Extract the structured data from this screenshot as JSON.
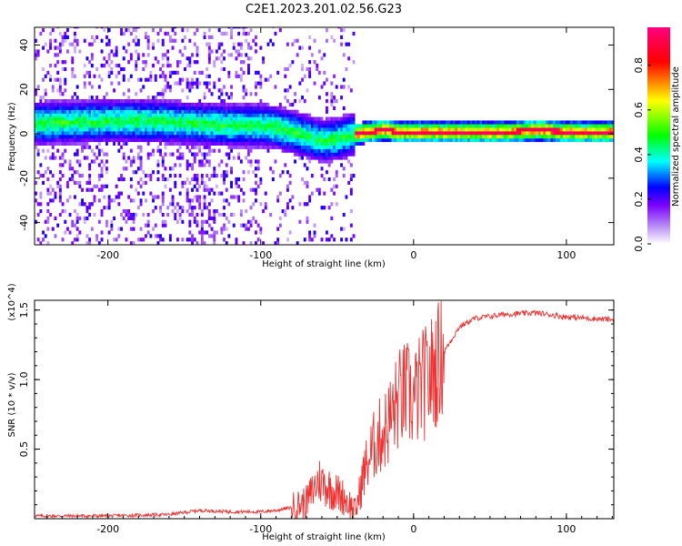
{
  "title": "C2E1.2023.201.02.56.G23",
  "chart_data": [
    {
      "type": "heatmap",
      "xlabel": "Height of straight line (km)",
      "ylabel": "Frequency (Hz)",
      "xlim": [
        -248,
        131
      ],
      "ylim": [
        -50,
        48
      ],
      "xticks": [
        -200,
        -100,
        0,
        100
      ],
      "xtick_labels": [
        "-200",
        "-100",
        "0",
        "100"
      ],
      "yticks": [
        -40,
        -20,
        0,
        20,
        40
      ],
      "ytick_labels": [
        "-40",
        "-20",
        "0",
        "20",
        "40"
      ],
      "colorbar": {
        "label": "Normalized spectral amplitude",
        "range": [
          0,
          0.97
        ],
        "ticks": [
          0.0,
          0.2,
          0.4,
          0.6,
          0.8
        ],
        "tick_labels": [
          "0.0",
          "0.2",
          "0.4",
          "0.6",
          "0.8"
        ],
        "colormap": [
          "#ffffff",
          "#d8b8f8",
          "#7a00ff",
          "#0000ff",
          "#00ffff",
          "#00ff00",
          "#ffff00",
          "#ff0000",
          "#ff0080"
        ]
      },
      "ridge": {
        "x": [
          -248,
          -200,
          -170,
          -150,
          -120,
          -100,
          -90,
          -80,
          -70,
          -60,
          -50,
          -40,
          -30,
          -20,
          -10,
          0,
          20,
          40,
          60,
          80,
          100,
          131
        ],
        "frequency_hz": [
          4,
          5,
          5,
          4,
          3,
          3,
          2,
          0,
          -2,
          -4,
          -3,
          -1,
          0,
          1,
          0,
          0,
          0,
          0,
          0,
          1,
          0,
          0
        ]
      },
      "grid": false
    },
    {
      "type": "line",
      "xlabel": "Height of straight line (km)",
      "ylabel": "SNR (10 * v/v)",
      "y_multiplier": "(x10^4)",
      "xlim": [
        -248,
        131
      ],
      "ylim": [
        0,
        1.57
      ],
      "xticks": [
        -200,
        -100,
        0,
        100
      ],
      "xtick_labels": [
        "-200",
        "-100",
        "0",
        "100"
      ],
      "yticks": [
        0.5,
        1.0,
        1.5
      ],
      "ytick_labels": [
        "0.5",
        "1.0",
        "1.5"
      ],
      "color": "#ee3333",
      "series": [
        {
          "x": [
            -248,
            -200,
            -160,
            -140,
            -120,
            -100,
            -90,
            -80,
            -70,
            -62,
            -55,
            -45,
            -38,
            -32,
            -25,
            -18,
            -10,
            -5,
            0,
            5,
            10,
            15,
            20,
            30,
            40,
            60,
            80,
            100,
            131
          ],
          "values": [
            0.02,
            0.02,
            0.03,
            0.06,
            0.05,
            0.05,
            0.06,
            0.08,
            0.12,
            0.28,
            0.22,
            0.15,
            0.05,
            0.35,
            0.55,
            0.65,
            0.85,
            0.9,
            0.85,
            0.95,
            1.0,
            1.1,
            1.2,
            1.38,
            1.44,
            1.47,
            1.48,
            1.45,
            1.43
          ]
        }
      ],
      "grid": false
    }
  ]
}
